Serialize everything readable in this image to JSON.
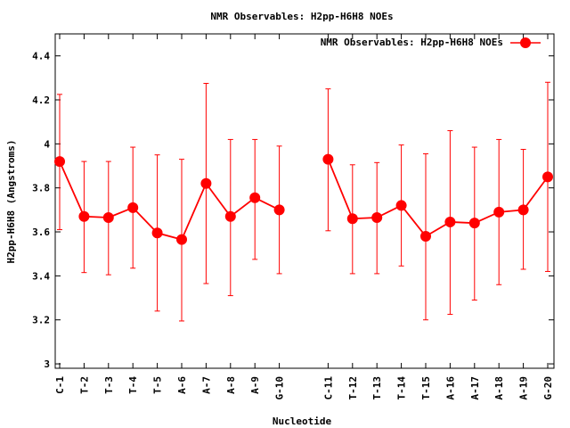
{
  "chart_data": {
    "type": "line",
    "title": "NMR Observables: H2pp-H6H8 NOEs",
    "xlabel": "Nucleotide",
    "ylabel": "H2pp-H6H8 (Angstroms)",
    "ylim": [
      2.98,
      4.5
    ],
    "yticks": [
      "3",
      "3.2",
      "3.4",
      "3.6",
      "3.8",
      "4",
      "4.2",
      "4.4"
    ],
    "ytick_values": [
      3.0,
      3.2,
      3.4,
      3.6,
      3.8,
      4.0,
      4.2,
      4.4
    ],
    "grid": false,
    "legend_position": "top-right",
    "color": "#ff0000",
    "categories": [
      "C-1",
      "T-2",
      "T-3",
      "T-4",
      "T-5",
      "A-6",
      "A-7",
      "A-8",
      "A-9",
      "G-10",
      "C-11",
      "T-12",
      "T-13",
      "T-14",
      "T-15",
      "A-16",
      "A-17",
      "A-18",
      "A-19",
      "G-20"
    ],
    "series": [
      {
        "name": "NMR Observables: H2pp-H6H8 NOEs",
        "values": [
          3.92,
          3.67,
          3.665,
          3.71,
          3.595,
          3.565,
          3.82,
          3.67,
          3.755,
          3.7,
          3.93,
          3.66,
          3.665,
          3.72,
          3.58,
          3.645,
          3.64,
          3.69,
          3.7,
          3.85
        ],
        "err_low": [
          3.61,
          3.415,
          3.405,
          3.435,
          3.24,
          3.195,
          3.365,
          3.31,
          3.475,
          3.41,
          3.605,
          3.41,
          3.41,
          3.445,
          3.2,
          3.225,
          3.29,
          3.36,
          3.43,
          3.42
        ],
        "err_high": [
          4.225,
          3.92,
          3.92,
          3.985,
          3.95,
          3.93,
          4.275,
          4.02,
          4.02,
          3.99,
          4.25,
          3.905,
          3.915,
          3.995,
          3.955,
          4.06,
          3.985,
          4.02,
          3.975,
          4.28
        ]
      }
    ]
  }
}
